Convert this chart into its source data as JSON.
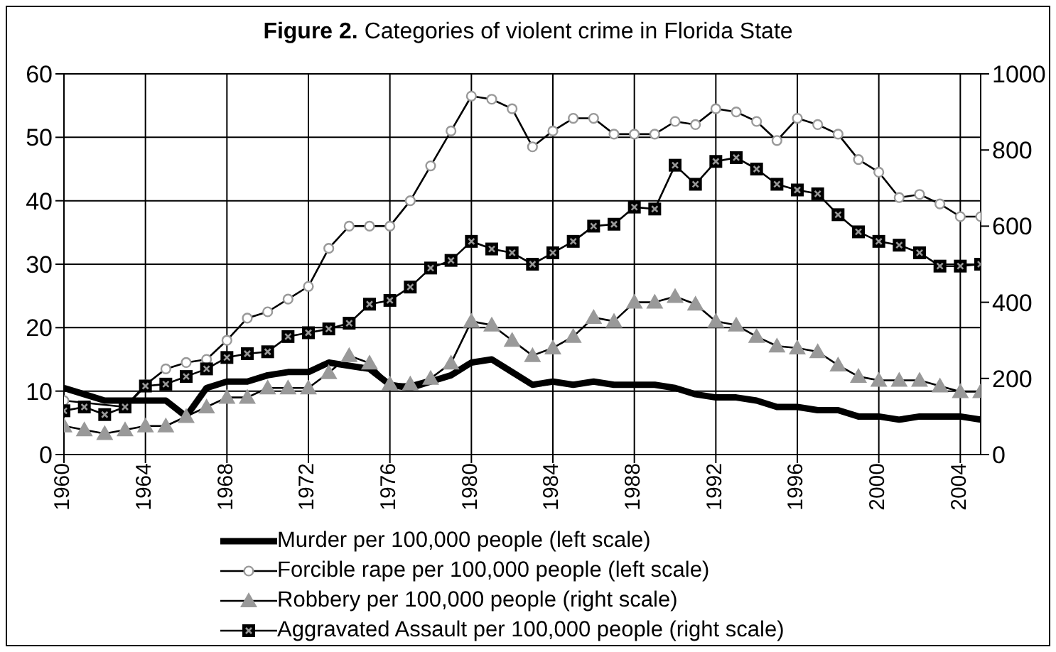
{
  "chart_data": {
    "type": "line",
    "title": "Figure 2. Categories of violent crime in Florida  State",
    "x": [
      1960,
      1961,
      1962,
      1963,
      1964,
      1965,
      1966,
      1967,
      1968,
      1969,
      1970,
      1971,
      1972,
      1973,
      1974,
      1975,
      1976,
      1977,
      1978,
      1979,
      1980,
      1981,
      1982,
      1983,
      1984,
      1985,
      1986,
      1987,
      1988,
      1989,
      1990,
      1991,
      1992,
      1993,
      1994,
      1995,
      1996,
      1997,
      1998,
      1999,
      2000,
      2001,
      2002,
      2003,
      2004,
      2005
    ],
    "series": [
      {
        "name": "Murder per 100,000 people (left scale)",
        "color": "#000000",
        "marker": "none",
        "values": [
          10.5,
          9.5,
          8.5,
          8.5,
          8.5,
          8.5,
          6,
          10.5,
          11.5,
          11.5,
          12.5,
          13,
          13,
          14.5,
          14,
          13.5,
          11,
          10.5,
          11.5,
          12.5,
          14.5,
          15,
          13,
          11,
          11.5,
          11,
          11.5,
          11,
          11,
          11,
          10.5,
          9.5,
          9,
          9,
          8.5,
          7.5,
          7.5,
          7,
          7,
          6,
          6,
          5.5,
          6,
          6,
          6,
          5.5
        ]
      },
      {
        "name": "Forcible rape per 100,000 people (left scale)",
        "color": "#000000",
        "marker": "circle",
        "values": [
          8.5,
          null,
          null,
          7.5,
          11,
          13.5,
          14.5,
          15,
          18,
          21.5,
          22.5,
          24.5,
          26.5,
          32.5,
          36,
          36,
          36,
          40,
          45.5,
          51,
          56.5,
          56,
          54.5,
          48.5,
          51,
          53,
          53,
          50.5,
          50.5,
          50.5,
          52.5,
          52,
          54.5,
          54,
          52.5,
          49.5,
          53,
          52,
          50.5,
          46.5,
          44.5,
          40.5,
          41,
          39.5,
          37.5,
          37.5
        ]
      },
      {
        "name": "Robbery per 100,000 people (right scale)",
        "color": "#999999",
        "marker": "triangle",
        "axis": "y2",
        "values": [
          75,
          65,
          55,
          65,
          75,
          75,
          100,
          125,
          150,
          150,
          175,
          175,
          175,
          215,
          260,
          240,
          185,
          185,
          200,
          240,
          350,
          340,
          300,
          260,
          280,
          310,
          360,
          350,
          400,
          400,
          415,
          395,
          350,
          340,
          310,
          285,
          280,
          270,
          235,
          205,
          195,
          195,
          195,
          180,
          165,
          165
        ]
      },
      {
        "name": "Aggravated Assault per 100,000 people (right scale)",
        "color": "#000000",
        "marker": "square",
        "axis": "y2",
        "values": [
          115,
          125,
          105,
          125,
          180,
          185,
          205,
          225,
          255,
          265,
          270,
          310,
          320,
          330,
          345,
          395,
          405,
          440,
          490,
          510,
          560,
          540,
          530,
          500,
          530,
          560,
          600,
          605,
          650,
          645,
          760,
          710,
          770,
          780,
          750,
          710,
          695,
          685,
          630,
          585,
          560,
          550,
          530,
          495,
          495,
          500
        ]
      }
    ],
    "xlim": [
      1960,
      2005
    ],
    "xticks": [
      1960,
      1964,
      1968,
      1972,
      1976,
      1980,
      1984,
      1988,
      1992,
      1996,
      2000,
      2004
    ],
    "ylim": [
      0,
      60
    ],
    "yticks": [
      0,
      10,
      20,
      30,
      40,
      50,
      60
    ],
    "y2lim": [
      0,
      1000
    ],
    "y2ticks": [
      0,
      200,
      400,
      600,
      800,
      1000
    ],
    "grid": true,
    "legend": "bottom"
  }
}
